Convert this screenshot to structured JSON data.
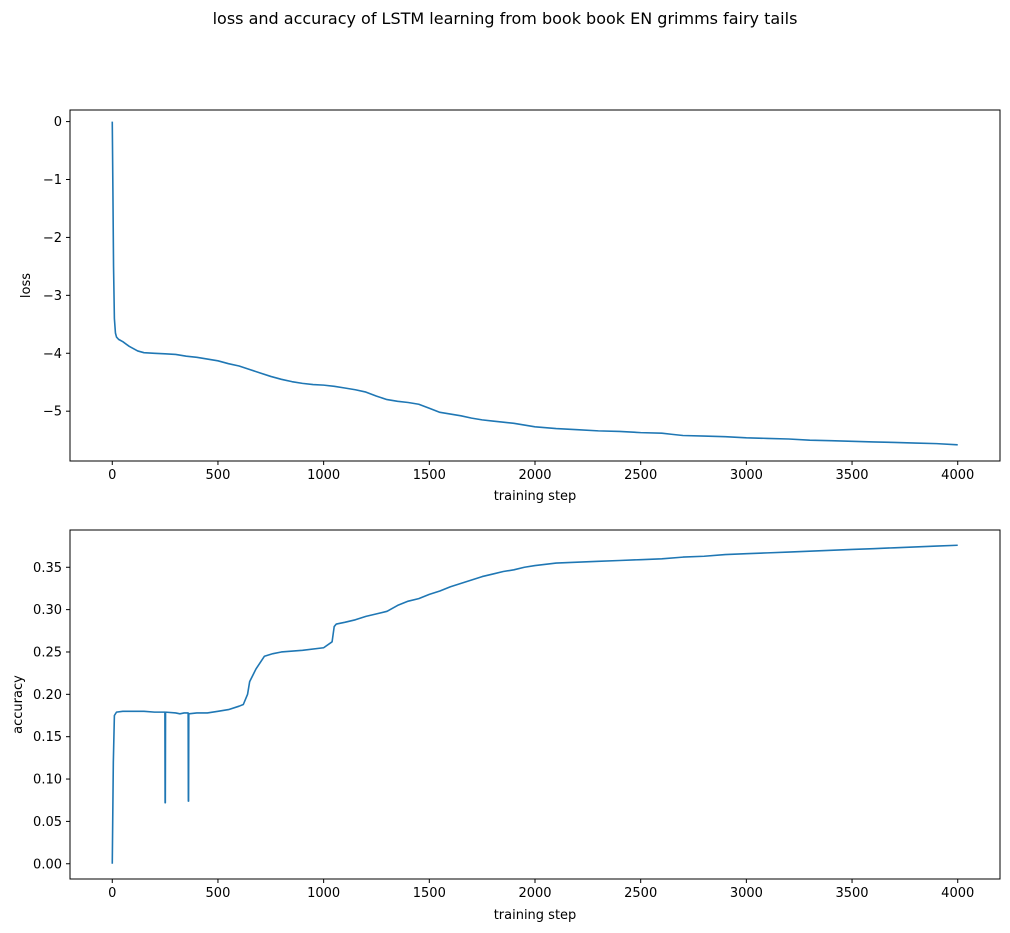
{
  "figure": {
    "title": "loss and accuracy of LSTM learning from book book EN grimms fairy tails"
  },
  "chart_data": [
    {
      "type": "line",
      "xlabel": "training step",
      "ylabel": "loss",
      "xlim": [
        -200,
        4200
      ],
      "ylim": [
        -5.86,
        0.2
      ],
      "xticks": [
        0,
        500,
        1000,
        1500,
        2000,
        2500,
        3000,
        3500,
        4000
      ],
      "xtick_labels": [
        "0",
        "500",
        "1000",
        "1500",
        "2000",
        "2500",
        "3000",
        "3500",
        "4000"
      ],
      "yticks": [
        0,
        -1,
        -2,
        -3,
        -4,
        -5
      ],
      "ytick_labels": [
        "0",
        "−1",
        "−2",
        "−3",
        "−4",
        "−5"
      ],
      "grid": false,
      "series": [
        {
          "color": "#1f77b4",
          "x": [
            0,
            3,
            6,
            10,
            15,
            20,
            30,
            50,
            80,
            120,
            150,
            200,
            250,
            300,
            350,
            400,
            450,
            500,
            550,
            600,
            650,
            700,
            750,
            800,
            850,
            900,
            950,
            1000,
            1050,
            1100,
            1150,
            1200,
            1250,
            1300,
            1350,
            1400,
            1450,
            1500,
            1550,
            1600,
            1650,
            1700,
            1750,
            1800,
            1850,
            1900,
            1950,
            2000,
            2100,
            2200,
            2300,
            2400,
            2500,
            2600,
            2650,
            2700,
            2800,
            2900,
            3000,
            3100,
            3200,
            3300,
            3400,
            3500,
            3600,
            3700,
            3800,
            3900,
            4000
          ],
          "y": [
            0.0,
            -1.2,
            -2.5,
            -3.4,
            -3.65,
            -3.72,
            -3.76,
            -3.8,
            -3.88,
            -3.96,
            -3.99,
            -4.0,
            -4.01,
            -4.02,
            -4.05,
            -4.07,
            -4.1,
            -4.13,
            -4.18,
            -4.22,
            -4.28,
            -4.34,
            -4.4,
            -4.45,
            -4.49,
            -4.52,
            -4.54,
            -4.55,
            -4.57,
            -4.6,
            -4.63,
            -4.67,
            -4.74,
            -4.8,
            -4.83,
            -4.85,
            -4.88,
            -4.95,
            -5.02,
            -5.05,
            -5.08,
            -5.12,
            -5.15,
            -5.17,
            -5.19,
            -5.21,
            -5.24,
            -5.27,
            -5.3,
            -5.32,
            -5.34,
            -5.35,
            -5.37,
            -5.38,
            -5.4,
            -5.42,
            -5.43,
            -5.44,
            -5.46,
            -5.47,
            -5.48,
            -5.5,
            -5.51,
            -5.52,
            -5.53,
            -5.54,
            -5.55,
            -5.56,
            -5.58
          ]
        }
      ]
    },
    {
      "type": "line",
      "xlabel": "training step",
      "ylabel": "accuracy",
      "xlim": [
        -200,
        4200
      ],
      "ylim": [
        -0.018,
        0.394
      ],
      "xticks": [
        0,
        500,
        1000,
        1500,
        2000,
        2500,
        3000,
        3500,
        4000
      ],
      "xtick_labels": [
        "0",
        "500",
        "1000",
        "1500",
        "2000",
        "2500",
        "3000",
        "3500",
        "4000"
      ],
      "yticks": [
        0.0,
        0.05,
        0.1,
        0.15,
        0.2,
        0.25,
        0.3,
        0.35
      ],
      "ytick_labels": [
        "0.00",
        "0.05",
        "0.10",
        "0.15",
        "0.20",
        "0.25",
        "0.30",
        "0.35"
      ],
      "grid": false,
      "series": [
        {
          "color": "#1f77b4",
          "x": [
            0,
            5,
            10,
            20,
            50,
            100,
            150,
            200,
            249,
            250,
            251,
            252,
            300,
            320,
            340,
            359,
            360,
            361,
            362,
            400,
            450,
            500,
            550,
            600,
            620,
            640,
            650,
            680,
            720,
            760,
            800,
            900,
            1000,
            1040,
            1050,
            1060,
            1100,
            1150,
            1200,
            1250,
            1300,
            1350,
            1400,
            1450,
            1500,
            1550,
            1600,
            1650,
            1700,
            1750,
            1800,
            1850,
            1900,
            1950,
            2000,
            2100,
            2200,
            2300,
            2400,
            2500,
            2600,
            2700,
            2800,
            2900,
            3000,
            3100,
            3200,
            3300,
            3400,
            3500,
            3600,
            3700,
            3800,
            3900,
            4000
          ],
          "y": [
            0.0,
            0.12,
            0.175,
            0.179,
            0.18,
            0.18,
            0.18,
            0.179,
            0.179,
            0.072,
            0.072,
            0.179,
            0.178,
            0.177,
            0.178,
            0.178,
            0.074,
            0.074,
            0.177,
            0.178,
            0.178,
            0.18,
            0.182,
            0.186,
            0.188,
            0.2,
            0.215,
            0.23,
            0.245,
            0.248,
            0.25,
            0.252,
            0.255,
            0.262,
            0.28,
            0.283,
            0.285,
            0.288,
            0.292,
            0.295,
            0.298,
            0.305,
            0.31,
            0.313,
            0.318,
            0.322,
            0.327,
            0.331,
            0.335,
            0.339,
            0.342,
            0.345,
            0.347,
            0.35,
            0.352,
            0.355,
            0.356,
            0.357,
            0.358,
            0.359,
            0.36,
            0.362,
            0.363,
            0.365,
            0.366,
            0.367,
            0.368,
            0.369,
            0.37,
            0.371,
            0.372,
            0.373,
            0.374,
            0.375,
            0.376
          ]
        }
      ]
    }
  ]
}
